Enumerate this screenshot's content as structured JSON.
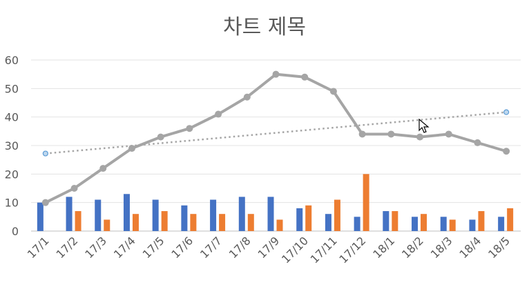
{
  "chart_data": {
    "type": "bar",
    "title": "차트 제목",
    "xlabel": "",
    "ylabel": "",
    "ylim": [
      0,
      60
    ],
    "yticks": [
      0,
      10,
      20,
      30,
      40,
      50,
      60
    ],
    "grid": true,
    "categories": [
      "17/1",
      "17/2",
      "17/3",
      "17/4",
      "17/5",
      "17/6",
      "17/7",
      "17/8",
      "17/9",
      "17/10",
      "17/11",
      "17/12",
      "18/1",
      "18/2",
      "18/3",
      "18/4",
      "18/5"
    ],
    "series": [
      {
        "type": "bar",
        "color": "#4472C4",
        "values": [
          10,
          12,
          11,
          13,
          11,
          9,
          11,
          12,
          12,
          8,
          6,
          5,
          7,
          5,
          5,
          4,
          5
        ]
      },
      {
        "type": "bar",
        "color": "#ED7D31",
        "values": [
          null,
          7,
          4,
          6,
          7,
          6,
          6,
          6,
          4,
          9,
          11,
          20,
          7,
          6,
          4,
          7,
          8
        ]
      },
      {
        "type": "line",
        "color": "#A5A5A5",
        "values": [
          10,
          15,
          22,
          29,
          33,
          36,
          41,
          47,
          55,
          54,
          49,
          34,
          34,
          33,
          34,
          31,
          28
        ]
      }
    ],
    "trendline": {
      "type": "linear",
      "style": "dotted",
      "color": "#A5A5A5",
      "endpoint_color": "#5B9BD5",
      "start": 27.2,
      "end": 41.7
    }
  }
}
